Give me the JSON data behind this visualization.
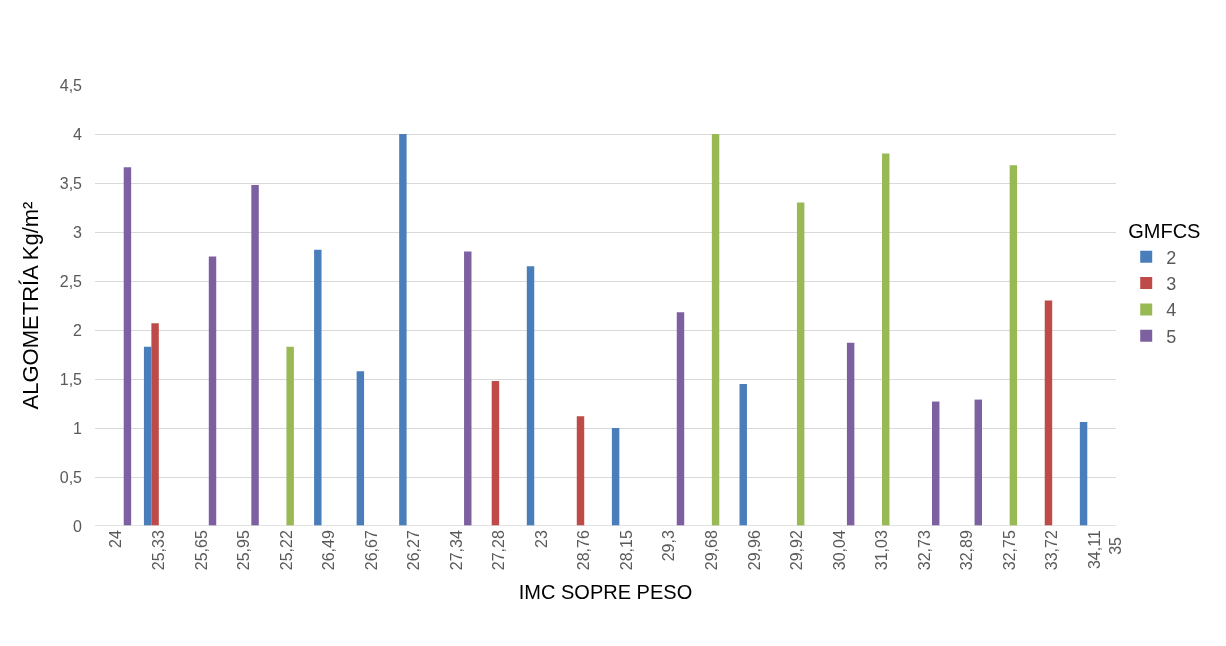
{
  "chart_data": {
    "type": "bar",
    "xlabel": "IMC SOPRE PESO",
    "ylabel": "ALGOMETRÍA Kg/m²",
    "legend_title": "GMFCS",
    "categories": [
      "24",
      "25,33",
      "25,65",
      "25,95",
      "25,22",
      "26,49",
      "26,67",
      "26,27",
      "27,34",
      "27,28",
      "23",
      "28,76",
      "28,15",
      "29,3",
      "29,68",
      "29,96",
      "29,92",
      "30,04",
      "31,03",
      "32,73",
      "32,89",
      "32,75",
      "33,72",
      "34,11"
    ],
    "series": [
      {
        "name": "2",
        "color": "#4a7ebb",
        "values": [
          null,
          1.83,
          null,
          null,
          null,
          2.82,
          1.58,
          4.0,
          null,
          null,
          2.65,
          null,
          1.0,
          null,
          null,
          1.45,
          null,
          null,
          null,
          null,
          null,
          null,
          null,
          1.06
        ]
      },
      {
        "name": "3",
        "color": "#be4b48",
        "values": [
          null,
          2.07,
          null,
          null,
          null,
          null,
          null,
          null,
          null,
          1.48,
          null,
          1.12,
          null,
          null,
          null,
          null,
          null,
          null,
          null,
          null,
          null,
          null,
          2.3,
          null
        ]
      },
      {
        "name": "4",
        "color": "#98b954",
        "values": [
          null,
          null,
          null,
          null,
          1.83,
          null,
          null,
          null,
          null,
          null,
          null,
          null,
          null,
          null,
          4.0,
          null,
          3.3,
          null,
          3.8,
          null,
          null,
          3.68,
          null,
          null
        ]
      },
      {
        "name": "5",
        "color": "#7d60a0",
        "values": [
          3.66,
          null,
          2.75,
          3.48,
          null,
          null,
          null,
          null,
          2.8,
          null,
          null,
          null,
          null,
          2.18,
          null,
          null,
          null,
          1.87,
          null,
          1.27,
          1.29,
          null,
          null,
          null
        ]
      }
    ],
    "annotations": [
      "35"
    ],
    "ylim": [
      0,
      4.5
    ],
    "yticks": [
      0,
      {
        "value": 0.5,
        "label": "0,5"
      },
      1,
      {
        "value": 1.5,
        "label": "1,5"
      },
      2,
      {
        "value": 2.5,
        "label": "2,5"
      },
      3,
      {
        "value": 3.5,
        "label": "3,5"
      },
      4,
      {
        "value": 4.5,
        "label": "4,5"
      }
    ],
    "grid": "y",
    "legend": "right"
  }
}
